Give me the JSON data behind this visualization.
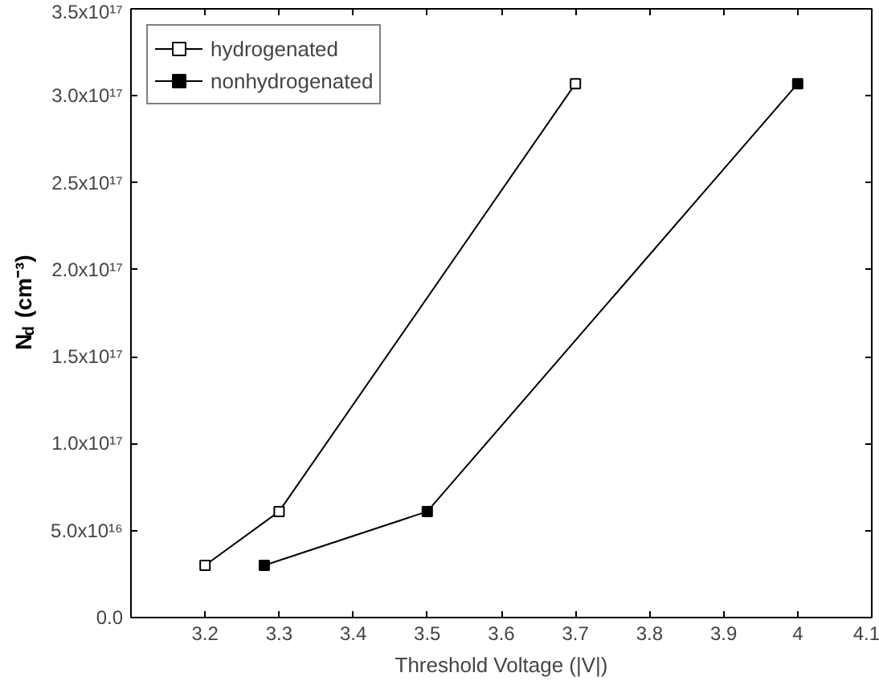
{
  "chart_data": {
    "type": "line",
    "xlabel": "Threshold Voltage (|V|)",
    "ylabel": "N$_{d}$ (cm⁻³)",
    "xlim": [
      3.1,
      4.1
    ],
    "xticks": [
      3.2,
      3.3,
      3.4,
      3.5,
      3.6,
      3.7,
      3.8,
      3.9,
      4.0,
      4.1
    ],
    "ylim": [
      0,
      3.5e+17
    ],
    "yticks": [
      {
        "value": 0,
        "label": "0.0"
      },
      {
        "value": 5e+16,
        "label": "5.0x10¹⁶"
      },
      {
        "value": 1e+17,
        "label": "1.0x10¹⁷"
      },
      {
        "value": 1.5e+17,
        "label": "1.5x10¹⁷"
      },
      {
        "value": 2e+17,
        "label": "2.0x10¹⁷"
      },
      {
        "value": 2.5e+17,
        "label": "2.5x10¹⁷"
      },
      {
        "value": 3e+17,
        "label": "3.0x10¹⁷"
      },
      {
        "value": 3.5e+17,
        "label": "3.5x10¹⁷"
      }
    ],
    "series": [
      {
        "name": "hydrogenated",
        "color": "#000000",
        "x": [
          3.2,
          3.3,
          3.7
        ],
        "values": [
          3e+16,
          6.1e+16,
          3.07e+17
        ]
      },
      {
        "name": "nonhydrogenated",
        "color": "#000000",
        "x": [
          3.28,
          3.5,
          4.0
        ],
        "values": [
          3e+16,
          6.1e+16,
          3.07e+17
        ]
      }
    ],
    "marker": "square",
    "line_style": "solid",
    "legend": "top left",
    "grid": false
  }
}
